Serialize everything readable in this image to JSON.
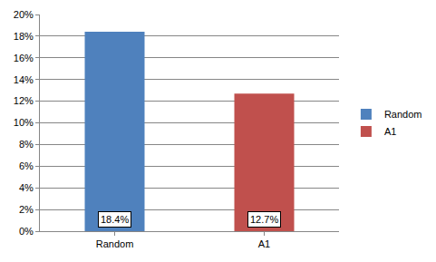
{
  "chart_data": {
    "type": "bar",
    "categories": [
      "Random",
      "A1"
    ],
    "series": [
      {
        "name": "Random",
        "color": "#4f81bd",
        "values": [
          18.4,
          null
        ],
        "value_labels": [
          "18.4%",
          null
        ]
      },
      {
        "name": "A1",
        "color": "#c0504d",
        "values": [
          null,
          12.7
        ],
        "value_labels": [
          null,
          "12.7%"
        ]
      }
    ],
    "ylim": [
      0,
      20
    ],
    "yticks": [
      {
        "value": 0,
        "label": "0%"
      },
      {
        "value": 2,
        "label": "2%"
      },
      {
        "value": 4,
        "label": "4%"
      },
      {
        "value": 6,
        "label": "6%"
      },
      {
        "value": 8,
        "label": "8%"
      },
      {
        "value": 10,
        "label": "10%"
      },
      {
        "value": 12,
        "label": "12%"
      },
      {
        "value": 14,
        "label": "14%"
      },
      {
        "value": 16,
        "label": "16%"
      },
      {
        "value": 18,
        "label": "18%"
      },
      {
        "value": 20,
        "label": "20%"
      }
    ],
    "grid": true,
    "legend": "right",
    "data_labels": true
  }
}
